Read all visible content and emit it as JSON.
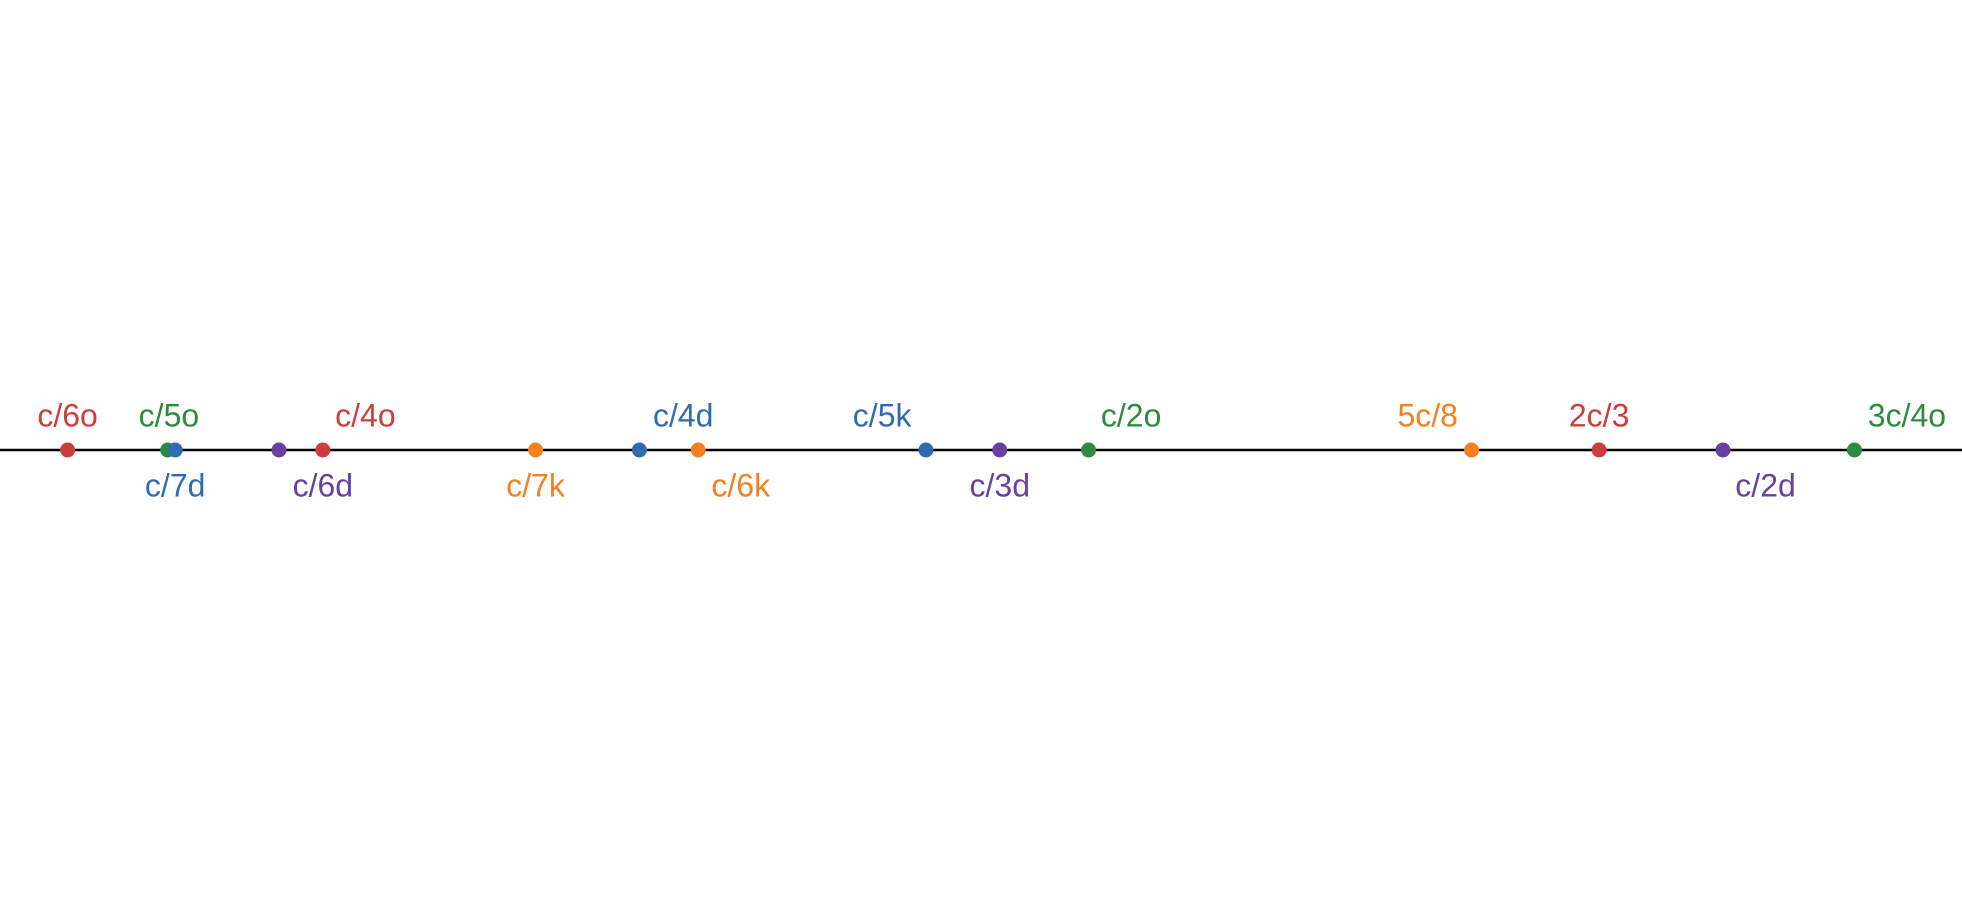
{
  "nodes": [
    {
      "label": "c/6o"
    },
    {
      "label": "c/5o"
    },
    {
      "label": "c/7d"
    },
    {
      "label": "c/6d"
    },
    {
      "label": "c/4o"
    },
    {
      "label": "c/7k"
    },
    {
      "label": "c/4d"
    },
    {
      "label": "c/6k"
    },
    {
      "label": "c/5k"
    },
    {
      "label": "c/3d"
    },
    {
      "label": "c/2o"
    },
    {
      "label": "5c/8"
    },
    {
      "label": "2c/3"
    },
    {
      "label": "c/2d"
    },
    {
      "label": "3c/4o"
    }
  ]
}
